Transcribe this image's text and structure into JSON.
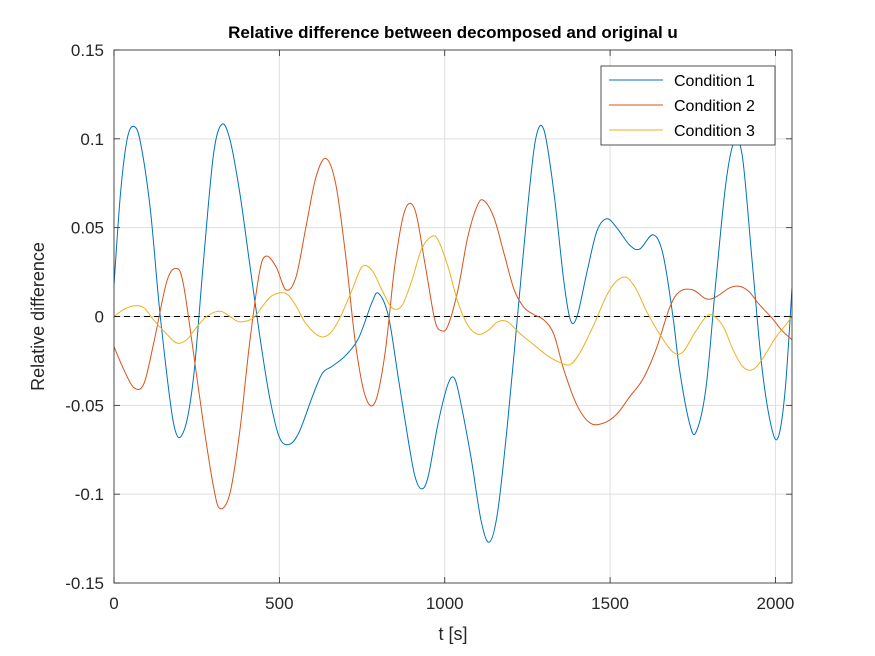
{
  "chart_data": {
    "type": "line",
    "title": "Relative difference between decomposed and original u",
    "xlabel": "t [s]",
    "ylabel": "Relative difference",
    "xlim": [
      0,
      2050
    ],
    "ylim": [
      -0.15,
      0.15
    ],
    "xticks": [
      0,
      500,
      1000,
      1500,
      2000
    ],
    "xtick_labels": [
      "0",
      "500",
      "1000",
      "1500",
      "2000"
    ],
    "yticks": [
      -0.15,
      -0.1,
      -0.05,
      0,
      0.05,
      0.1,
      0.15
    ],
    "ytick_labels": [
      "-0.15",
      "-0.1",
      "-0.05",
      "0",
      "0.05",
      "0.1",
      "0.15"
    ],
    "grid": true,
    "legend_position": "top-right",
    "reference_line": {
      "y": 0,
      "style": "dashed",
      "color": "#000000"
    },
    "series": [
      {
        "name": "Condition 1",
        "color": "#0072BD",
        "x": [
          0,
          20,
          40,
          60,
          80,
          110,
          140,
          180,
          210,
          240,
          270,
          300,
          325,
          350,
          380,
          410,
          440,
          470,
          500,
          530,
          560,
          600,
          630,
          660,
          700,
          740,
          780,
          800,
          830,
          860,
          890,
          910,
          930,
          950,
          980,
          1010,
          1030,
          1050,
          1080,
          1110,
          1135,
          1160,
          1190,
          1220,
          1250,
          1275,
          1300,
          1330,
          1360,
          1380,
          1400,
          1430,
          1460,
          1490,
          1520,
          1560,
          1590,
          1630,
          1660,
          1690,
          1710,
          1740,
          1760,
          1790,
          1820,
          1850,
          1875,
          1900,
          1930,
          1960,
          1990,
          2010,
          2030,
          2050
        ],
        "y": [
          0.018,
          0.07,
          0.1,
          0.107,
          0.098,
          0.06,
          0.0,
          -0.06,
          -0.065,
          -0.035,
          0.03,
          0.09,
          0.108,
          0.1,
          0.07,
          0.03,
          -0.01,
          -0.045,
          -0.068,
          -0.072,
          -0.065,
          -0.045,
          -0.032,
          -0.028,
          -0.022,
          -0.012,
          0.008,
          0.013,
          0.0,
          -0.035,
          -0.07,
          -0.09,
          -0.097,
          -0.09,
          -0.06,
          -0.038,
          -0.035,
          -0.05,
          -0.08,
          -0.115,
          -0.127,
          -0.11,
          -0.06,
          0.0,
          0.06,
          0.1,
          0.105,
          0.07,
          0.02,
          -0.002,
          0.0,
          0.025,
          0.048,
          0.055,
          0.05,
          0.04,
          0.038,
          0.046,
          0.035,
          0.0,
          -0.03,
          -0.06,
          -0.065,
          -0.04,
          0.02,
          0.075,
          0.098,
          0.09,
          0.03,
          -0.03,
          -0.064,
          -0.067,
          -0.04,
          0.016
        ]
      },
      {
        "name": "Condition 2",
        "color": "#D95319",
        "x": [
          0,
          30,
          60,
          90,
          120,
          160,
          190,
          210,
          240,
          270,
          300,
          320,
          350,
          380,
          410,
          440,
          460,
          490,
          520,
          550,
          580,
          610,
          640,
          670,
          700,
          730,
          760,
          790,
          820,
          850,
          880,
          910,
          940,
          970,
          990,
          1010,
          1040,
          1070,
          1100,
          1120,
          1150,
          1180,
          1210,
          1240,
          1270,
          1300,
          1330,
          1360,
          1400,
          1440,
          1480,
          1520,
          1560,
          1600,
          1640,
          1680,
          1710,
          1750,
          1790,
          1820,
          1860,
          1890,
          1920,
          1950,
          1990,
          2020,
          2050
        ],
        "y": [
          -0.017,
          -0.03,
          -0.04,
          -0.038,
          -0.015,
          0.02,
          0.027,
          0.018,
          -0.02,
          -0.06,
          -0.095,
          -0.108,
          -0.1,
          -0.065,
          -0.015,
          0.025,
          0.034,
          0.028,
          0.015,
          0.022,
          0.05,
          0.078,
          0.089,
          0.075,
          0.035,
          -0.015,
          -0.045,
          -0.048,
          -0.02,
          0.03,
          0.06,
          0.06,
          0.03,
          -0.002,
          -0.008,
          -0.005,
          0.015,
          0.045,
          0.063,
          0.065,
          0.055,
          0.035,
          0.015,
          0.005,
          0.001,
          -0.002,
          -0.01,
          -0.03,
          -0.05,
          -0.06,
          -0.06,
          -0.055,
          -0.045,
          -0.035,
          -0.018,
          0.005,
          0.014,
          0.015,
          0.01,
          0.011,
          0.016,
          0.017,
          0.014,
          0.007,
          -0.001,
          -0.008,
          -0.013
        ]
      },
      {
        "name": "Condition 3",
        "color": "#EDB120",
        "x": [
          0,
          30,
          60,
          90,
          120,
          160,
          190,
          220,
          250,
          280,
          320,
          350,
          380,
          420,
          450,
          480,
          520,
          550,
          580,
          620,
          650,
          680,
          720,
          750,
          780,
          810,
          840,
          870,
          900,
          930,
          960,
          980,
          1010,
          1040,
          1070,
          1100,
          1130,
          1160,
          1190,
          1230,
          1270,
          1310,
          1350,
          1380,
          1410,
          1450,
          1490,
          1520,
          1550,
          1580,
          1610,
          1650,
          1690,
          1720,
          1760,
          1800,
          1840,
          1870,
          1900,
          1930,
          1960,
          2000,
          2030,
          2050
        ],
        "y": [
          0.0,
          0.004,
          0.006,
          0.005,
          -0.002,
          -0.01,
          -0.015,
          -0.013,
          -0.006,
          0.0,
          0.003,
          0.0,
          -0.003,
          -0.001,
          0.006,
          0.012,
          0.013,
          0.006,
          -0.004,
          -0.011,
          -0.01,
          -0.002,
          0.015,
          0.028,
          0.026,
          0.015,
          0.005,
          0.006,
          0.02,
          0.038,
          0.045,
          0.043,
          0.028,
          0.008,
          -0.005,
          -0.01,
          -0.008,
          -0.003,
          -0.003,
          -0.01,
          -0.016,
          -0.022,
          -0.026,
          -0.027,
          -0.02,
          -0.005,
          0.012,
          0.02,
          0.022,
          0.015,
          0.003,
          -0.01,
          -0.02,
          -0.02,
          -0.008,
          0.001,
          -0.005,
          -0.018,
          -0.028,
          -0.03,
          -0.024,
          -0.012,
          -0.005,
          0.0
        ]
      }
    ]
  }
}
